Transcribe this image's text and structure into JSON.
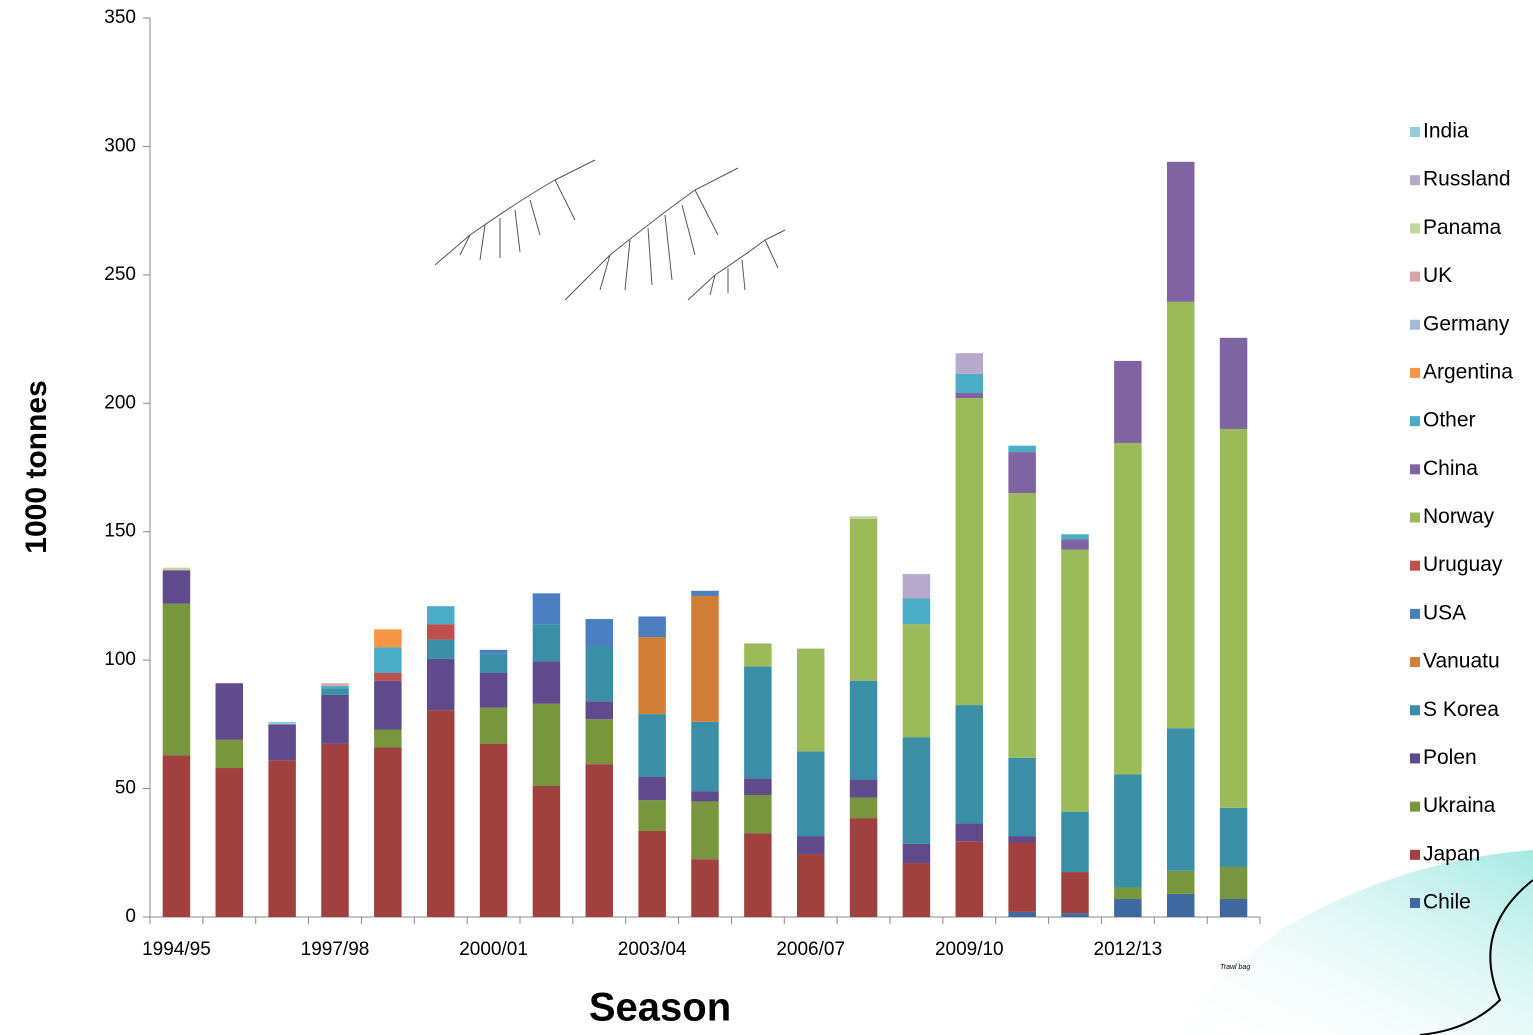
{
  "chart_data": {
    "type": "stacked_bar",
    "y_label": "1000 tonnes",
    "x_label": "Season",
    "annotation": "Trawl bag",
    "categories": [
      "1994/95",
      null,
      null,
      "1997/98",
      null,
      null,
      "2000/01",
      null,
      null,
      "2003/04",
      null,
      null,
      "2006/07",
      null,
      null,
      "2009/10",
      null,
      null,
      "2012/13",
      null,
      null
    ],
    "ylim": [
      0,
      350
    ],
    "yticks": [
      0,
      50,
      100,
      150,
      200,
      250,
      300,
      350
    ],
    "series": [
      {
        "name": "Chile",
        "color": "#3f68a0",
        "values": [
          null,
          null,
          null,
          null,
          null,
          null,
          null,
          null,
          null,
          null,
          null,
          null,
          null,
          null,
          null,
          null,
          2,
          1.5,
          7,
          9,
          7
        ]
      },
      {
        "name": "Japan",
        "color": "#a0403f",
        "values": [
          63,
          58,
          61,
          67.5,
          66,
          80.5,
          67.5,
          51,
          59.5,
          33.5,
          22.5,
          32.5,
          24.5,
          38.5,
          21,
          29.5,
          27,
          16,
          null,
          null,
          null
        ]
      },
      {
        "name": "Ukraina",
        "color": "#77963e",
        "values": [
          59,
          11,
          null,
          null,
          7,
          null,
          14,
          32,
          17.5,
          12,
          22.5,
          15,
          null,
          8,
          null,
          null,
          null,
          null,
          4.5,
          9,
          12.5
        ]
      },
      {
        "name": "Polen",
        "color": "#5f4a8b",
        "values": [
          13,
          22,
          14,
          19,
          19,
          20,
          13.5,
          16.5,
          7,
          9,
          4,
          6.5,
          7,
          7,
          7.5,
          7,
          2.5,
          null,
          null,
          null,
          null
        ]
      },
      {
        "name": "S Korea",
        "color": "#3a8ea5",
        "values": [
          null,
          null,
          null,
          2.5,
          null,
          7.5,
          7.5,
          14.5,
          21.5,
          24.5,
          27,
          43.5,
          33,
          38.5,
          41.5,
          46,
          30.5,
          23.5,
          44,
          55.5,
          23
        ]
      },
      {
        "name": "Vanuatu",
        "color": "#d17f37",
        "values": [
          null,
          null,
          null,
          null,
          null,
          null,
          null,
          null,
          null,
          30,
          49,
          null,
          null,
          null,
          null,
          null,
          null,
          null,
          null,
          null,
          null
        ]
      },
      {
        "name": "USA",
        "color": "#4a7ec0",
        "values": [
          null,
          null,
          null,
          null,
          null,
          null,
          1.5,
          12,
          10.5,
          8,
          2,
          null,
          null,
          null,
          null,
          null,
          null,
          null,
          null,
          null,
          null
        ]
      },
      {
        "name": "Uruguay",
        "color": "#c0504d",
        "values": [
          null,
          null,
          null,
          null,
          3,
          6,
          null,
          null,
          null,
          null,
          null,
          null,
          null,
          null,
          null,
          null,
          null,
          null,
          null,
          null,
          null
        ]
      },
      {
        "name": "Norway",
        "color": "#9bbb59",
        "values": [
          null,
          null,
          null,
          null,
          null,
          null,
          null,
          null,
          null,
          null,
          null,
          9,
          40,
          63,
          44,
          119.5,
          103,
          102,
          129,
          166,
          147.5
        ]
      },
      {
        "name": "China",
        "color": "#8064a2",
        "values": [
          null,
          null,
          null,
          null,
          null,
          null,
          null,
          null,
          null,
          null,
          null,
          null,
          null,
          null,
          null,
          2,
          16,
          4,
          32,
          54.5,
          35.5
        ]
      },
      {
        "name": "Other",
        "color": "#4bacc6",
        "values": [
          null,
          null,
          null,
          1,
          10,
          7,
          null,
          null,
          null,
          null,
          null,
          null,
          null,
          null,
          10,
          7.5,
          2.5,
          2,
          null,
          null,
          null
        ]
      },
      {
        "name": "Argentina",
        "color": "#f79646",
        "values": [
          null,
          null,
          null,
          null,
          7,
          null,
          null,
          null,
          null,
          null,
          null,
          null,
          null,
          null,
          null,
          null,
          null,
          null,
          null,
          null,
          null
        ]
      },
      {
        "name": "Germany",
        "color": "#a5b9d9",
        "values": [
          null,
          null,
          null,
          null,
          null,
          null,
          null,
          null,
          null,
          null,
          null,
          null,
          null,
          null,
          null,
          null,
          null,
          null,
          null,
          null,
          null
        ]
      },
      {
        "name": "UK",
        "color": "#d9a5a4",
        "values": [
          null,
          null,
          null,
          1,
          null,
          null,
          null,
          null,
          null,
          null,
          null,
          null,
          null,
          null,
          null,
          null,
          null,
          null,
          null,
          null,
          null
        ]
      },
      {
        "name": "Panama",
        "color": "#c3d69b",
        "values": [
          1,
          null,
          null,
          null,
          null,
          null,
          null,
          null,
          null,
          null,
          null,
          null,
          null,
          1,
          null,
          null,
          null,
          null,
          null,
          null,
          null
        ]
      },
      {
        "name": "Russland",
        "color": "#b7a9cc",
        "values": [
          null,
          null,
          null,
          null,
          null,
          null,
          null,
          null,
          null,
          null,
          null,
          null,
          null,
          null,
          9.5,
          8,
          null,
          null,
          null,
          null,
          null
        ]
      },
      {
        "name": "India",
        "color": "#93cddd",
        "values": [
          null,
          null,
          1,
          null,
          null,
          null,
          null,
          null,
          null,
          null,
          null,
          null,
          null,
          null,
          null,
          null,
          null,
          null,
          null,
          null,
          null
        ]
      }
    ]
  }
}
